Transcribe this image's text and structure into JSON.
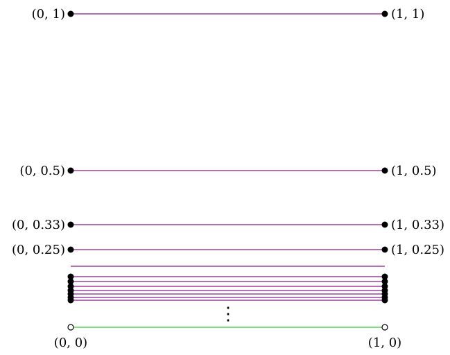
{
  "colors": {
    "segment": "#8b1a8b",
    "limit_segment": "#33cc33",
    "point": "#000000",
    "background": "#ffffff"
  },
  "segments": [
    {
      "left_label": "(0, 1)",
      "right_label": "(1, 1)"
    },
    {
      "left_label": "(0, 0.5)",
      "right_label": "(1, 0.5)"
    },
    {
      "left_label": "(0, 0.33)",
      "right_label": "(1, 0.33)"
    },
    {
      "left_label": "(0, 0.25)",
      "right_label": "(1, 0.25)"
    }
  ],
  "continuation_symbol": "⋮",
  "limit_segment": {
    "left_label": "(0, 0)",
    "right_label": "(1, 0)"
  }
}
